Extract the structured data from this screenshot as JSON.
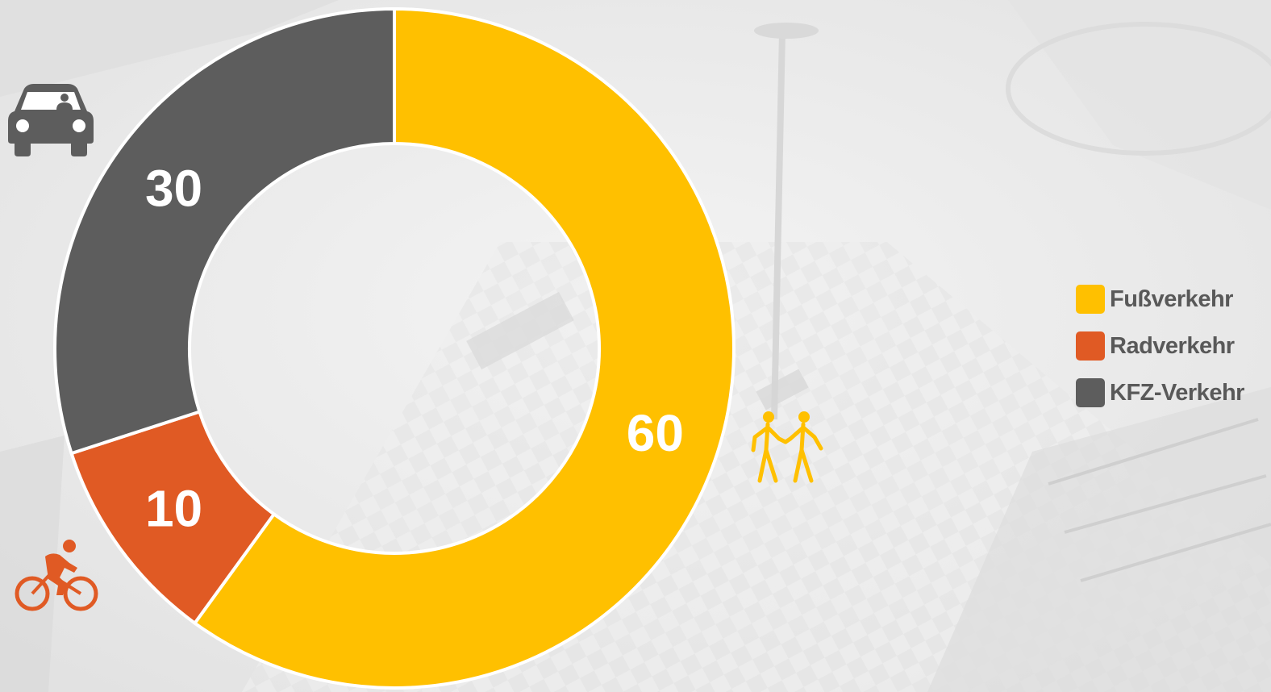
{
  "chart_data": {
    "type": "pie",
    "variant": "donut",
    "categories": [
      "Fußverkehr",
      "Radverkehr",
      "KFZ-Verkehr"
    ],
    "values": [
      60,
      10,
      30
    ],
    "data_labels": [
      "60",
      "10",
      "30"
    ],
    "colors": [
      "#ffc000",
      "#e05a24",
      "#5d5d5d"
    ],
    "legend": {
      "placement": "right",
      "entries": [
        "Fußverkehr",
        "Radverkehr",
        "KFZ-Verkehr"
      ]
    },
    "title": "",
    "start_angle": "12 o'clock, clockwise"
  },
  "icons": {
    "Fußverkehr": "pedestrians-icon",
    "Radverkehr": "cyclist-icon",
    "KFZ-Verkehr": "car-icon"
  },
  "background": "faded aerial photo of a paved public square"
}
